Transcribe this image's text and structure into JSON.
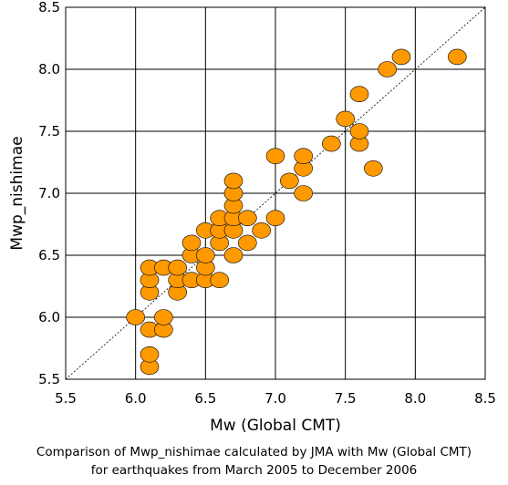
{
  "chart_data": {
    "type": "scatter",
    "xlabel": "Mw (Global CMT)",
    "ylabel": "Mwp_nishimae",
    "xlim": [
      5.5,
      8.5
    ],
    "ylim": [
      5.5,
      8.5
    ],
    "x_ticks": [
      "5.5",
      "6.0",
      "6.5",
      "7.0",
      "7.5",
      "8.0",
      "8.5"
    ],
    "y_ticks": [
      "5.5",
      "6.0",
      "6.5",
      "7.0",
      "7.5",
      "8.0",
      "8.5"
    ],
    "grid": true,
    "reference_line": "y = x (dotted)",
    "marker_color": "#ff9900",
    "marker_edge_color": "#000000",
    "points": [
      [
        6.0,
        6.0
      ],
      [
        6.1,
        5.6
      ],
      [
        6.1,
        5.7
      ],
      [
        6.1,
        5.9
      ],
      [
        6.1,
        6.2
      ],
      [
        6.1,
        6.3
      ],
      [
        6.1,
        6.4
      ],
      [
        6.2,
        5.9
      ],
      [
        6.2,
        6.0
      ],
      [
        6.2,
        6.4
      ],
      [
        6.3,
        6.2
      ],
      [
        6.3,
        6.3
      ],
      [
        6.3,
        6.4
      ],
      [
        6.4,
        6.3
      ],
      [
        6.4,
        6.5
      ],
      [
        6.4,
        6.6
      ],
      [
        6.5,
        6.3
      ],
      [
        6.5,
        6.4
      ],
      [
        6.5,
        6.5
      ],
      [
        6.5,
        6.7
      ],
      [
        6.6,
        6.3
      ],
      [
        6.6,
        6.6
      ],
      [
        6.6,
        6.7
      ],
      [
        6.6,
        6.8
      ],
      [
        6.7,
        6.5
      ],
      [
        6.7,
        6.7
      ],
      [
        6.7,
        6.8
      ],
      [
        6.7,
        6.9
      ],
      [
        6.7,
        7.0
      ],
      [
        6.7,
        7.1
      ],
      [
        6.8,
        6.6
      ],
      [
        6.8,
        6.8
      ],
      [
        6.9,
        6.7
      ],
      [
        7.0,
        6.8
      ],
      [
        7.0,
        7.3
      ],
      [
        7.1,
        7.1
      ],
      [
        7.2,
        7.0
      ],
      [
        7.2,
        7.2
      ],
      [
        7.2,
        7.3
      ],
      [
        7.4,
        7.4
      ],
      [
        7.5,
        7.6
      ],
      [
        7.6,
        7.4
      ],
      [
        7.6,
        7.5
      ],
      [
        7.6,
        7.8
      ],
      [
        7.7,
        7.2
      ],
      [
        7.8,
        8.0
      ],
      [
        7.9,
        8.1
      ],
      [
        8.3,
        8.1
      ]
    ]
  },
  "caption": {
    "line1": "Comparison of Mwp_nishimae calculated by JMA with Mw (Global CMT)",
    "line2": "for earthquakes from March 2005 to December 2006"
  }
}
